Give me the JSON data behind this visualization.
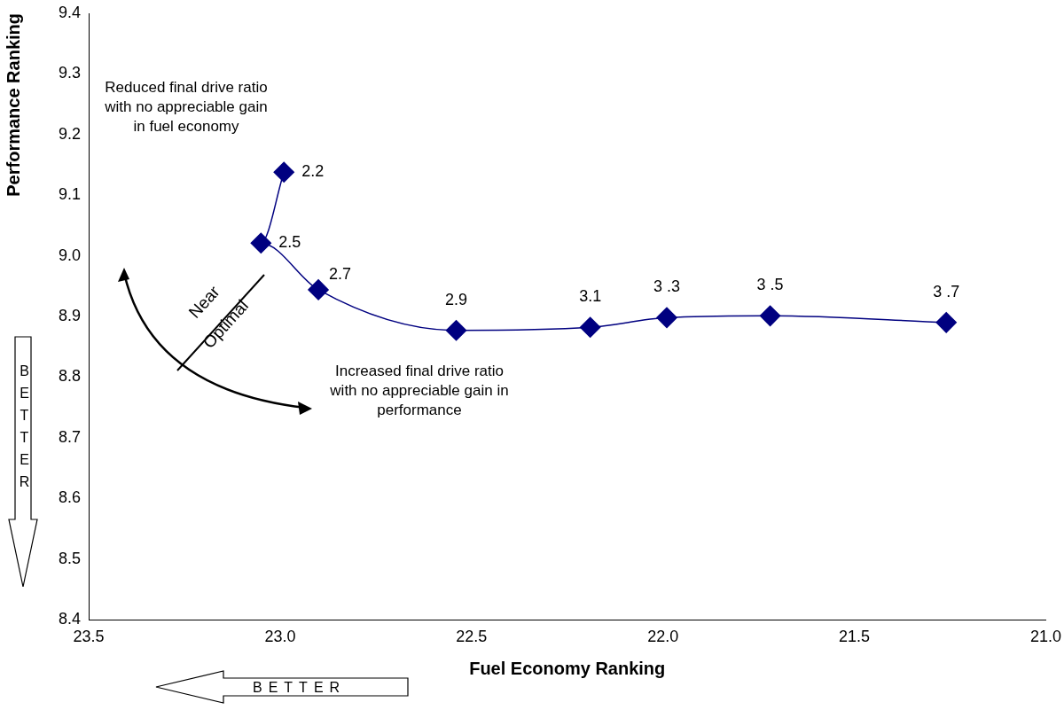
{
  "chart_data": {
    "type": "line",
    "xlabel": "Fuel Economy Ranking",
    "ylabel": "Performance Ranking",
    "x": [
      22.99,
      23.05,
      22.9,
      22.54,
      22.19,
      21.99,
      21.72,
      21.26
    ],
    "series": [
      {
        "color": "#000080",
        "values": [
          9.138,
          9.021,
          8.944,
          8.877,
          8.882,
          8.898,
          8.901,
          8.89
        ]
      }
    ],
    "xlim": [
      23.5,
      21.0
    ],
    "xticks": [
      23.5,
      {
        "value": 23,
        "label": "23.0"
      },
      22.5,
      {
        "value": 22,
        "label": "22.0"
      },
      21.5,
      {
        "value": 21,
        "label": "21.0"
      }
    ],
    "ylim": [
      8.4,
      9.4
    ],
    "yticks": [
      8.4,
      8.5,
      8.6,
      8.7,
      8.8,
      8.9,
      {
        "value": 9,
        "label": "9.0"
      },
      9.1,
      9.2,
      9.3,
      9.4
    ],
    "marker": "diamond",
    "grid": false,
    "legend": false,
    "annotations": [
      "Reduced final drive ratio with no appreciable gain in fuel economy",
      "Increased final drive ratio with no appreciable gain in performance",
      "Near",
      "Optimal",
      "BETTER",
      "BETTER",
      {
        "text": "2.2",
        "x": 22.99,
        "y": 9.138
      },
      {
        "text": "2.5",
        "x": 23.05,
        "y": 9.021
      },
      {
        "text": "2.7",
        "x": 22.9,
        "y": 8.944
      },
      {
        "text": "2.9",
        "x": 22.54,
        "y": 8.877
      },
      {
        "text": "3.1",
        "x": 22.19,
        "y": 8.882
      },
      {
        "text": "3 .3",
        "x": 21.99,
        "y": 8.898
      },
      {
        "text": "3 .5",
        "x": 21.72,
        "y": 8.901
      },
      {
        "text": "3 .7",
        "x": 21.26,
        "y": 8.89
      }
    ]
  }
}
